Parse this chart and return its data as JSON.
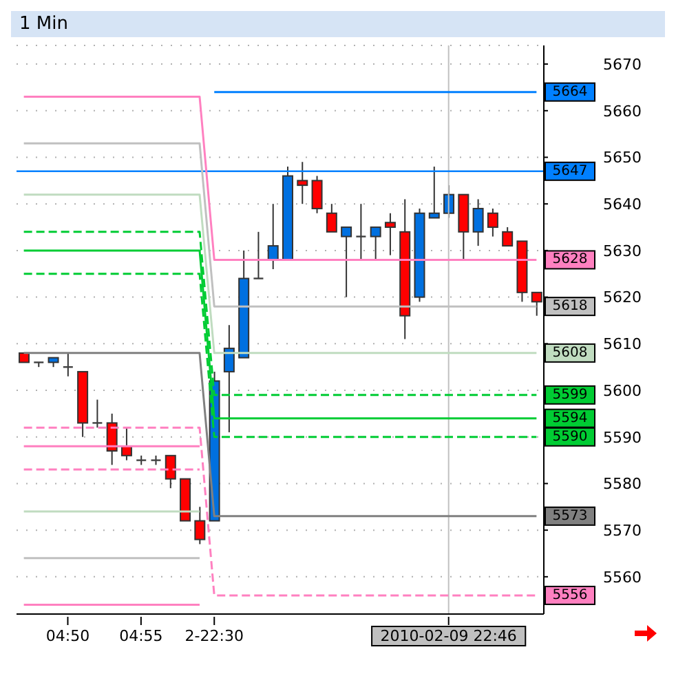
{
  "chart_data": {
    "type": "candlestick",
    "title": "1 Min",
    "categories": [
      null,
      null,
      null,
      "04:50",
      null,
      null,
      null,
      null,
      "04:55",
      null,
      null,
      null,
      null,
      "2-22:30",
      null,
      null,
      null,
      null,
      null,
      null,
      null,
      null,
      null,
      null,
      null,
      null,
      null,
      null,
      null,
      "2010-02-09 22:46",
      null,
      null,
      null,
      null,
      null,
      null
    ],
    "ohlc": [
      [
        5608,
        5608,
        5606,
        5606
      ],
      [
        5606,
        5606,
        5605,
        5606
      ],
      [
        5606,
        5607,
        5605,
        5607
      ],
      [
        5605,
        5608,
        5603,
        5605
      ],
      [
        5604,
        5604,
        5590,
        5593
      ],
      [
        5593,
        5598,
        5592,
        5593
      ],
      [
        5593,
        5595,
        5584,
        5587
      ],
      [
        5588,
        5592,
        5585,
        5586
      ],
      [
        5585,
        5586,
        5584,
        5585
      ],
      [
        5585,
        5586,
        5584,
        5585
      ],
      [
        5586,
        5586,
        5579,
        5581
      ],
      [
        5581,
        5581,
        5572,
        5572
      ],
      [
        5572,
        5575,
        5567,
        5568
      ],
      [
        5572,
        5604,
        5572,
        5602
      ],
      [
        5604,
        5614,
        5591,
        5609
      ],
      [
        5607,
        5630,
        5607,
        5624
      ],
      [
        5624,
        5634,
        5624,
        5624
      ],
      [
        5628,
        5640,
        5626,
        5631
      ],
      [
        5628,
        5648,
        5628,
        5646
      ],
      [
        5645,
        5649,
        5640,
        5644
      ],
      [
        5645,
        5646,
        5638,
        5639
      ],
      [
        5638,
        5640,
        5634,
        5634
      ],
      [
        5633,
        5635,
        5620,
        5635
      ],
      [
        5633,
        5640,
        5628,
        5633
      ],
      [
        5633,
        5635,
        5628,
        5635
      ],
      [
        5636,
        5638,
        5629,
        5635
      ],
      [
        5634,
        5641,
        5611,
        5616
      ],
      [
        5620,
        5639,
        5619,
        5638
      ],
      [
        5637,
        5648,
        5637,
        5638
      ],
      [
        5638,
        5644,
        5637,
        5642
      ],
      [
        5642,
        5642,
        5628,
        5634
      ],
      [
        5634,
        5641,
        5631,
        5639
      ],
      [
        5638,
        5639,
        5633,
        5635
      ],
      [
        5634,
        5635,
        5631,
        5631
      ],
      [
        5632,
        5632,
        5619,
        5621
      ],
      [
        5621,
        5621,
        5616,
        5619
      ]
    ],
    "colors": [
      "#ff0000",
      "#404040",
      "#0070e0",
      "#404040",
      "#ff0000",
      "#404040",
      "#ff0000",
      "#ff0000",
      "#404040",
      "#404040",
      "#ff0000",
      "#ff0000",
      "#ff0000",
      "#0070e0",
      "#0070e0",
      "#0070e0",
      "#404040",
      "#0070e0",
      "#0070e0",
      "#ff0000",
      "#ff0000",
      "#ff0000",
      "#0070e0",
      "#404040",
      "#0070e0",
      "#ff0000",
      "#ff0000",
      "#0070e0",
      "#0070e0",
      "#0070e0",
      "#ff0000",
      "#0070e0",
      "#ff0000",
      "#ff0000",
      "#ff0000",
      "#ff0000"
    ],
    "series": [
      {
        "type": "line",
        "color": "#ff80c0",
        "line_style": "solid",
        "values": [
          5663,
          5663,
          5663,
          5663,
          5663,
          5663,
          5663,
          5663,
          5663,
          5663,
          5663,
          5663,
          5663,
          5628,
          5628,
          5628,
          5628,
          5628,
          5628,
          5628,
          5628,
          5628,
          5628,
          5628,
          5628,
          5628,
          5628,
          5628,
          5628,
          5628,
          5628,
          5628,
          5628,
          5628,
          5628,
          5628
        ],
        "value_labels": [
          null,
          null,
          null,
          null,
          null,
          null,
          null,
          null,
          null,
          null,
          null,
          null,
          null,
          null,
          null,
          null,
          null,
          null,
          null,
          null,
          null,
          null,
          null,
          null,
          null,
          null,
          null,
          null,
          null,
          null,
          null,
          null,
          null,
          null,
          null,
          "5628"
        ]
      },
      {
        "type": "line",
        "color": "#c0c0c0",
        "line_style": "solid",
        "values": [
          5653,
          5653,
          5653,
          5653,
          5653,
          5653,
          5653,
          5653,
          5653,
          5653,
          5653,
          5653,
          5653,
          5618,
          5618,
          5618,
          5618,
          5618,
          5618,
          5618,
          5618,
          5618,
          5618,
          5618,
          5618,
          5618,
          5618,
          5618,
          5618,
          5618,
          5618,
          5618,
          5618,
          5618,
          5618,
          5618
        ],
        "value_labels": [
          null,
          null,
          null,
          null,
          null,
          null,
          null,
          null,
          null,
          null,
          null,
          null,
          null,
          null,
          null,
          null,
          null,
          null,
          null,
          null,
          null,
          null,
          null,
          null,
          null,
          null,
          null,
          null,
          null,
          null,
          null,
          null,
          null,
          null,
          null,
          "5618"
        ]
      },
      {
        "type": "line",
        "color": "#c0dcc0",
        "line_style": "solid",
        "values": [
          5642,
          5642,
          5642,
          5642,
          5642,
          5642,
          5642,
          5642,
          5642,
          5642,
          5642,
          5642,
          5642,
          5608,
          5608,
          5608,
          5608,
          5608,
          5608,
          5608,
          5608,
          5608,
          5608,
          5608,
          5608,
          5608,
          5608,
          5608,
          5608,
          5608,
          5608,
          5608,
          5608,
          5608,
          5608,
          5608
        ],
        "value_labels": [
          null,
          null,
          null,
          null,
          null,
          null,
          null,
          null,
          null,
          null,
          null,
          null,
          null,
          null,
          null,
          null,
          null,
          null,
          null,
          null,
          null,
          null,
          null,
          null,
          null,
          null,
          null,
          null,
          null,
          null,
          null,
          null,
          null,
          null,
          null,
          "5608"
        ]
      },
      {
        "type": "line",
        "color": "#00cc33",
        "line_style": "dashed",
        "values": [
          5634,
          5634,
          5634,
          5634,
          5634,
          5634,
          5634,
          5634,
          5634,
          5634,
          5634,
          5634,
          5634,
          5599,
          5599,
          5599,
          5599,
          5599,
          5599,
          5599,
          5599,
          5599,
          5599,
          5599,
          5599,
          5599,
          5599,
          5599,
          5599,
          5599,
          5599,
          5599,
          5599,
          5599,
          5599,
          5599
        ],
        "value_labels": [
          null,
          null,
          null,
          null,
          null,
          null,
          null,
          null,
          null,
          null,
          null,
          null,
          null,
          null,
          null,
          null,
          null,
          null,
          null,
          null,
          null,
          null,
          null,
          null,
          null,
          null,
          null,
          null,
          null,
          null,
          null,
          null,
          null,
          null,
          null,
          "5599"
        ]
      },
      {
        "type": "line",
        "color": "#00cc33",
        "line_style": "solid",
        "values": [
          5630,
          5630,
          5630,
          5630,
          5630,
          5630,
          5630,
          5630,
          5630,
          5630,
          5630,
          5630,
          5630,
          5594,
          5594,
          5594,
          5594,
          5594,
          5594,
          5594,
          5594,
          5594,
          5594,
          5594,
          5594,
          5594,
          5594,
          5594,
          5594,
          5594,
          5594,
          5594,
          5594,
          5594,
          5594,
          5594
        ],
        "value_labels": [
          null,
          null,
          null,
          null,
          null,
          null,
          null,
          null,
          null,
          null,
          null,
          null,
          null,
          null,
          null,
          null,
          null,
          null,
          null,
          null,
          null,
          null,
          null,
          null,
          null,
          null,
          null,
          null,
          null,
          null,
          null,
          null,
          null,
          null,
          null,
          "5594"
        ]
      },
      {
        "type": "line",
        "color": "#00cc33",
        "line_style": "dashed",
        "values": [
          5625,
          5625,
          5625,
          5625,
          5625,
          5625,
          5625,
          5625,
          5625,
          5625,
          5625,
          5625,
          5625,
          5590,
          5590,
          5590,
          5590,
          5590,
          5590,
          5590,
          5590,
          5590,
          5590,
          5590,
          5590,
          5590,
          5590,
          5590,
          5590,
          5590,
          5590,
          5590,
          5590,
          5590,
          5590,
          5590
        ],
        "value_labels": [
          null,
          null,
          null,
          null,
          null,
          null,
          null,
          null,
          null,
          null,
          null,
          null,
          null,
          null,
          null,
          null,
          null,
          null,
          null,
          null,
          null,
          null,
          null,
          null,
          null,
          null,
          null,
          null,
          null,
          null,
          null,
          null,
          null,
          null,
          null,
          "5590"
        ]
      },
      {
        "type": "line",
        "color": "#808080",
        "line_style": "solid",
        "values": [
          5608,
          5608,
          5608,
          5608,
          5608,
          5608,
          5608,
          5608,
          5608,
          5608,
          5608,
          5608,
          5608,
          5573,
          5573,
          5573,
          5573,
          5573,
          5573,
          5573,
          5573,
          5573,
          5573,
          5573,
          5573,
          5573,
          5573,
          5573,
          5573,
          5573,
          5573,
          5573,
          5573,
          5573,
          5573,
          5573
        ],
        "value_labels": [
          null,
          null,
          null,
          null,
          null,
          null,
          null,
          null,
          null,
          null,
          null,
          null,
          null,
          null,
          null,
          null,
          null,
          null,
          null,
          null,
          null,
          null,
          null,
          null,
          null,
          null,
          null,
          null,
          null,
          null,
          null,
          null,
          null,
          null,
          null,
          "5573"
        ]
      },
      {
        "type": "line",
        "color": "#ff80c0",
        "line_style": "dashed",
        "values": [
          5592,
          5592,
          5592,
          5592,
          5592,
          5592,
          5592,
          5592,
          5592,
          5592,
          5592,
          5592,
          5592,
          5556,
          5556,
          5556,
          5556,
          5556,
          5556,
          5556,
          5556,
          5556,
          5556,
          5556,
          5556,
          5556,
          5556,
          5556,
          5556,
          5556,
          5556,
          5556,
          5556,
          5556,
          5556,
          5556
        ],
        "value_labels": [
          null,
          null,
          null,
          null,
          null,
          null,
          null,
          null,
          null,
          null,
          null,
          null,
          null,
          null,
          null,
          null,
          null,
          null,
          null,
          null,
          null,
          null,
          null,
          null,
          null,
          null,
          null,
          null,
          null,
          null,
          null,
          null,
          null,
          null,
          null,
          "5556"
        ]
      },
      {
        "type": "line",
        "color": "#ff80c0",
        "line_style": "solid",
        "values": [
          5588,
          5588,
          5588,
          5588,
          5588,
          5588,
          5588,
          5588,
          5588,
          5588,
          5588,
          5588,
          5588,
          null,
          null,
          null,
          null,
          null,
          null,
          null,
          null,
          null,
          null,
          null,
          null,
          null,
          null,
          null,
          null,
          null,
          null,
          null,
          null,
          null,
          null,
          null
        ]
      },
      {
        "type": "line",
        "color": "#ff80c0",
        "line_style": "dashed",
        "values": [
          5583,
          5583,
          5583,
          5583,
          5583,
          5583,
          5583,
          5583,
          5583,
          5583,
          5583,
          5583,
          5583,
          null,
          null,
          null,
          null,
          null,
          null,
          null,
          null,
          null,
          null,
          null,
          null,
          null,
          null,
          null,
          null,
          null,
          null,
          null,
          null,
          null,
          null,
          null
        ]
      },
      {
        "type": "line",
        "color": "#c0dcc0",
        "line_style": "solid",
        "values": [
          5574,
          5574,
          5574,
          5574,
          5574,
          5574,
          5574,
          5574,
          5574,
          5574,
          5574,
          5574,
          5574,
          null,
          null,
          null,
          null,
          null,
          null,
          null,
          null,
          null,
          null,
          null,
          null,
          null,
          null,
          null,
          null,
          null,
          null,
          null,
          null,
          null,
          null,
          null
        ]
      },
      {
        "type": "line",
        "color": "#c0c0c0",
        "line_style": "solid",
        "values": [
          5564,
          5564,
          5564,
          5564,
          5564,
          5564,
          5564,
          5564,
          5564,
          5564,
          5564,
          5564,
          5564,
          null,
          null,
          null,
          null,
          null,
          null,
          null,
          null,
          null,
          null,
          null,
          null,
          null,
          null,
          null,
          null,
          null,
          null,
          null,
          null,
          null,
          null,
          null
        ]
      },
      {
        "type": "line",
        "color": "#ff80c0",
        "line_style": "solid",
        "values": [
          5554,
          5554,
          5554,
          5554,
          5554,
          5554,
          5554,
          5554,
          5554,
          5554,
          5554,
          5554,
          5554,
          null,
          null,
          null,
          null,
          null,
          null,
          null,
          null,
          null,
          null,
          null,
          null,
          null,
          null,
          null,
          null,
          null,
          null,
          null,
          null,
          null,
          null,
          null
        ]
      },
      {
        "type": "line",
        "color": "#0080ff",
        "line_style": "solid",
        "values": [
          null,
          null,
          null,
          null,
          null,
          null,
          null,
          null,
          null,
          null,
          null,
          null,
          null,
          5664,
          5664,
          5664,
          5664,
          5664,
          5664,
          5664,
          5664,
          5664,
          5664,
          5664,
          5664,
          5664,
          5664,
          5664,
          5664,
          5664,
          5664,
          5664,
          5664,
          5664,
          5664,
          5664
        ],
        "value_labels": [
          null,
          null,
          null,
          null,
          null,
          null,
          null,
          null,
          null,
          null,
          null,
          null,
          null,
          null,
          null,
          null,
          null,
          null,
          null,
          null,
          null,
          null,
          null,
          null,
          null,
          null,
          null,
          null,
          null,
          null,
          null,
          null,
          null,
          null,
          null,
          "5664"
        ]
      }
    ],
    "ref_lines": [
      {
        "axis": "y",
        "value": 5647,
        "label": "5647",
        "color": "#0080ff"
      },
      {
        "axis": "x",
        "value": "2010-02-09 22:46",
        "color": "#c0c0c0"
      }
    ],
    "ylim": [
      5552,
      5674
    ],
    "yticks": [
      5560,
      5570,
      5580,
      5590,
      5600,
      5610,
      5620,
      5630,
      5640,
      5650,
      5660,
      5670
    ],
    "grid": "y"
  }
}
